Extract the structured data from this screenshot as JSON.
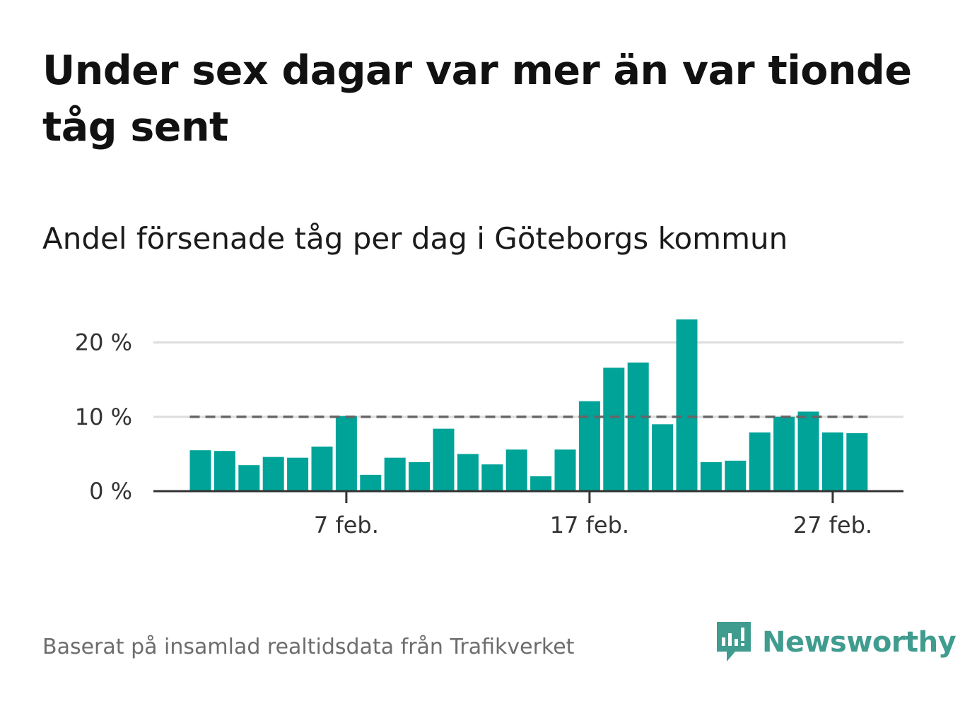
{
  "title": "Under sex dagar var mer än var tionde tåg sent",
  "subtitle": "Andel försenade tåg per dag i Göteborgs kommun",
  "source": "Baserat på insamlad realtidsdata från Trafikverket",
  "brand": "Newsworthy",
  "colors": {
    "bar": "#00a398",
    "reference_line": "#666666",
    "grid": "#dddddd",
    "brand": "#3f9c8f"
  },
  "chart_data": {
    "type": "bar",
    "title": "Andel försenade tåg per dag i Göteborgs kommun",
    "xlabel": "",
    "ylabel": "",
    "categories": [
      "1 feb.",
      "2 feb.",
      "3 feb.",
      "4 feb.",
      "5 feb.",
      "6 feb.",
      "7 feb.",
      "8 feb.",
      "9 feb.",
      "10 feb.",
      "11 feb.",
      "12 feb.",
      "13 feb.",
      "14 feb.",
      "15 feb.",
      "16 feb.",
      "17 feb.",
      "18 feb.",
      "19 feb.",
      "20 feb.",
      "21 feb.",
      "22 feb.",
      "23 feb.",
      "24 feb.",
      "25 feb.",
      "26 feb.",
      "27 feb.",
      "28 feb."
    ],
    "values": [
      5.5,
      5.4,
      3.5,
      4.6,
      4.5,
      6.0,
      10.1,
      2.2,
      4.5,
      3.9,
      8.4,
      5.0,
      3.6,
      5.6,
      2.0,
      5.6,
      12.1,
      16.6,
      17.3,
      9.0,
      23.1,
      3.9,
      4.1,
      7.9,
      10.0,
      10.7,
      7.9,
      7.8
    ],
    "reference_line": 10,
    "ylim": [
      0,
      25
    ],
    "yticks": [
      0,
      10,
      20
    ],
    "ytick_labels": [
      "0 %",
      "10 %",
      "20 %"
    ],
    "xtick_labels": [
      {
        "category": "7 feb.",
        "label": "7 feb."
      },
      {
        "category": "17 feb.",
        "label": "17 feb."
      },
      {
        "category": "27 feb.",
        "label": "27 feb."
      }
    ],
    "grid": true,
    "legend": "none"
  }
}
